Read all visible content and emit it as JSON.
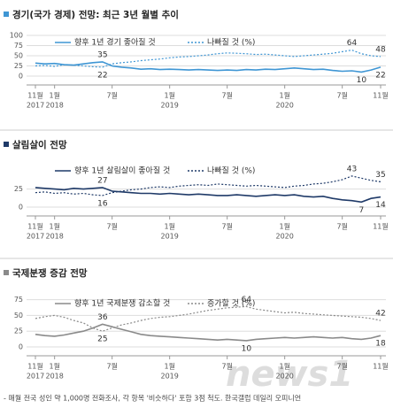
{
  "chart_data": [
    {
      "type": "line",
      "title": "경기(국가 경제) 전망: 최근 3년 월별 추이",
      "categories": [
        "11월",
        null,
        "1월",
        null,
        null,
        null,
        null,
        null,
        "7월",
        null,
        null,
        null,
        null,
        null,
        "1월",
        null,
        null,
        null,
        null,
        null,
        "7월",
        null,
        null,
        null,
        null,
        null,
        "1월",
        null,
        null,
        null,
        null,
        null,
        "7월",
        null,
        null,
        null,
        "11월"
      ],
      "x_years": [
        "2017",
        null,
        "2018",
        null,
        null,
        null,
        null,
        null,
        null,
        null,
        null,
        null,
        null,
        null,
        "2019",
        null,
        null,
        null,
        null,
        null,
        null,
        null,
        null,
        null,
        null,
        null,
        "2020",
        null,
        null,
        null,
        null,
        null,
        null,
        null,
        null,
        null,
        null
      ],
      "ylim": [
        0,
        100
      ],
      "yticks": [
        0,
        25,
        50,
        75,
        100
      ],
      "grid": true,
      "series": [
        {
          "name": "향후 1년 경기 좋아질 것",
          "color": "#3f96d4",
          "dash": false,
          "labeled": [
            7,
            34,
            36
          ],
          "values": [
            32,
            30,
            31,
            28,
            27,
            30,
            33,
            35,
            25,
            22,
            20,
            17,
            18,
            16,
            17,
            16,
            15,
            16,
            15,
            14,
            15,
            14,
            16,
            15,
            17,
            16,
            18,
            20,
            18,
            16,
            17,
            14,
            12,
            13,
            10,
            15,
            22
          ]
        },
        {
          "name": "나빠질 것 (%)",
          "color": "#3f96d4",
          "dash": true,
          "labeled": [
            7,
            33,
            36
          ],
          "values": [
            25,
            26,
            24,
            28,
            27,
            25,
            23,
            22,
            30,
            33,
            35,
            38,
            40,
            42,
            45,
            47,
            48,
            50,
            52,
            55,
            57,
            56,
            55,
            53,
            54,
            52,
            50,
            48,
            50,
            52,
            54,
            56,
            60,
            64,
            55,
            50,
            48
          ]
        }
      ]
    },
    {
      "type": "line",
      "title": "살림살이 전망",
      "categories": [
        "11월",
        null,
        "1월",
        null,
        null,
        null,
        null,
        null,
        "7월",
        null,
        null,
        null,
        null,
        null,
        "1월",
        null,
        null,
        null,
        null,
        null,
        "7월",
        null,
        null,
        null,
        null,
        null,
        "1월",
        null,
        null,
        null,
        null,
        null,
        "7월",
        null,
        null,
        null,
        "11월"
      ],
      "x_years": [
        "2017",
        null,
        "2018",
        null,
        null,
        null,
        null,
        null,
        null,
        null,
        null,
        null,
        null,
        null,
        "2019",
        null,
        null,
        null,
        null,
        null,
        null,
        null,
        null,
        null,
        null,
        null,
        "2020",
        null,
        null,
        null,
        null,
        null,
        null,
        null,
        null,
        null,
        null
      ],
      "ylim": [
        0,
        60
      ],
      "yticks": [
        0,
        25
      ],
      "grid": true,
      "series": [
        {
          "name": "향후 1년 살림살이 좋아질 것",
          "color": "#1f3a68",
          "dash": false,
          "labeled": [
            7,
            34,
            36
          ],
          "values": [
            27,
            26,
            25,
            24,
            26,
            25,
            26,
            27,
            22,
            21,
            20,
            19,
            19,
            18,
            19,
            18,
            17,
            18,
            17,
            16,
            16,
            17,
            16,
            15,
            16,
            17,
            16,
            17,
            15,
            14,
            15,
            12,
            10,
            9,
            7,
            12,
            14
          ]
        },
        {
          "name": "나빠질 것 (%)",
          "color": "#1f3a68",
          "dash": true,
          "labeled": [
            7,
            33,
            36
          ],
          "values": [
            20,
            21,
            19,
            20,
            18,
            19,
            17,
            16,
            20,
            22,
            24,
            25,
            27,
            28,
            27,
            29,
            30,
            31,
            30,
            32,
            31,
            30,
            29,
            30,
            29,
            28,
            27,
            29,
            30,
            32,
            33,
            35,
            38,
            43,
            40,
            37,
            35
          ]
        }
      ]
    },
    {
      "type": "line",
      "title": "국제분쟁 증감 전망",
      "categories": [
        "11월",
        null,
        "1월",
        null,
        null,
        null,
        null,
        null,
        "7월",
        null,
        null,
        null,
        null,
        null,
        "1월",
        null,
        null,
        null,
        null,
        null,
        "7월",
        null,
        null,
        null,
        null,
        null,
        "1월",
        null,
        null,
        null,
        null,
        null,
        "7월",
        null,
        null,
        null,
        "11월"
      ],
      "x_years": [
        "2017",
        null,
        "2018",
        null,
        null,
        null,
        null,
        null,
        null,
        null,
        null,
        null,
        null,
        null,
        "2019",
        null,
        null,
        null,
        null,
        null,
        null,
        null,
        null,
        null,
        null,
        null,
        "2020",
        null,
        null,
        null,
        null,
        null,
        null,
        null,
        null,
        null,
        null
      ],
      "ylim": [
        0,
        80
      ],
      "yticks": [
        0,
        25,
        50,
        75
      ],
      "grid": true,
      "series": [
        {
          "name": "향후 1년 국제분쟁 감소할 것",
          "color": "#8a8a8a",
          "dash": false,
          "labeled": [
            7,
            22,
            36
          ],
          "values": [
            20,
            18,
            17,
            19,
            22,
            25,
            30,
            36,
            32,
            28,
            24,
            20,
            18,
            17,
            16,
            15,
            14,
            13,
            12,
            11,
            12,
            11,
            10,
            12,
            13,
            14,
            15,
            14,
            15,
            16,
            15,
            14,
            15,
            13,
            12,
            14,
            18
          ]
        },
        {
          "name": "증가할 것 (%)",
          "color": "#8a8a8a",
          "dash": true,
          "labeled": [
            7,
            22,
            36
          ],
          "values": [
            45,
            48,
            50,
            47,
            42,
            38,
            30,
            25,
            30,
            35,
            38,
            42,
            45,
            47,
            48,
            50,
            52,
            55,
            58,
            60,
            62,
            63,
            64,
            60,
            58,
            56,
            54,
            55,
            53,
            52,
            51,
            50,
            49,
            48,
            47,
            45,
            42
          ]
        }
      ]
    }
  ],
  "footnote": "- 매월 전국 성인 약 1,000명 전화조사, 각 항목 '비슷하다' 포함 3점 척도. 한국갤럽 데일리 오피니언",
  "watermark": "news1"
}
